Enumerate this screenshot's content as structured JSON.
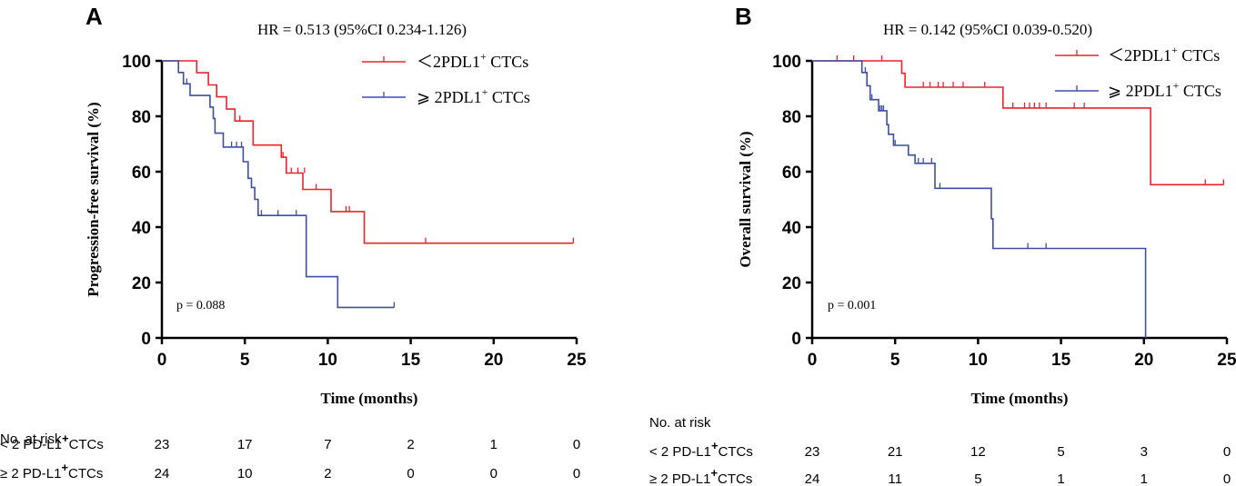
{
  "chart_data": [
    {
      "type": "line",
      "panel_label": "A",
      "title": "HR = 0.513 (95%CI 0.234-1.126)",
      "xlabel": "Time (months)",
      "ylabel": "Progression-free survival (%)",
      "xlim": [
        0,
        25
      ],
      "ylim": [
        0,
        100
      ],
      "xticks": [
        "0",
        "5",
        "10",
        "15",
        "20",
        "25"
      ],
      "yticks": [
        "0",
        "20",
        "40",
        "60",
        "80",
        "100"
      ],
      "legend_position": "top-right",
      "annotation": "p = 0.088",
      "series": [
        {
          "name": "＜2PDL1",
          "sup": "+",
          "suffix": " CTCs",
          "color": "#e8242a",
          "points": [
            [
              0,
              100
            ],
            [
              2.1,
              100
            ],
            [
              2.1,
              95.7
            ],
            [
              2.8,
              95.7
            ],
            [
              2.8,
              91.3
            ],
            [
              3.3,
              91.3
            ],
            [
              3.3,
              87
            ],
            [
              3.9,
              87
            ],
            [
              3.9,
              82.6
            ],
            [
              4.4,
              82.6
            ],
            [
              4.4,
              78.3
            ],
            [
              5.5,
              78.3
            ],
            [
              5.5,
              69.6
            ],
            [
              7.2,
              69.6
            ],
            [
              7.2,
              65.2
            ],
            [
              7.5,
              65.2
            ],
            [
              7.5,
              59.5
            ],
            [
              8.5,
              59.5
            ],
            [
              8.5,
              53.6
            ],
            [
              10.2,
              53.6
            ],
            [
              10.2,
              45.6
            ],
            [
              12.2,
              45.6
            ],
            [
              12.2,
              34.2
            ],
            [
              24.8,
              34.2
            ]
          ],
          "censors": [
            [
              4.7,
              78.3
            ],
            [
              7.3,
              65.2
            ],
            [
              7.8,
              59.5
            ],
            [
              8.2,
              59.5
            ],
            [
              8.6,
              59.5
            ],
            [
              9.3,
              53.6
            ],
            [
              11.1,
              45.6
            ],
            [
              11.3,
              45.6
            ],
            [
              15.9,
              34.2
            ],
            [
              24.8,
              34.2
            ]
          ]
        },
        {
          "name": "⩾ 2PDL1",
          "sup": "+",
          "suffix": " CTCs",
          "color": "#3e4fa3",
          "points": [
            [
              0,
              100
            ],
            [
              1,
              100
            ],
            [
              1,
              95.8
            ],
            [
              1.3,
              95.8
            ],
            [
              1.3,
              91.7
            ],
            [
              1.7,
              91.7
            ],
            [
              1.7,
              87.5
            ],
            [
              2.9,
              87.5
            ],
            [
              2.9,
              83.3
            ],
            [
              3.1,
              83.3
            ],
            [
              3.1,
              79.2
            ],
            [
              3.2,
              79.2
            ],
            [
              3.2,
              73.9
            ],
            [
              3.7,
              73.9
            ],
            [
              3.7,
              68.9
            ],
            [
              4.9,
              68.9
            ],
            [
              4.9,
              63.6
            ],
            [
              5.2,
              63.6
            ],
            [
              5.2,
              57.6
            ],
            [
              5.4,
              57.6
            ],
            [
              5.4,
              54.3
            ],
            [
              5.6,
              54.3
            ],
            [
              5.6,
              50
            ],
            [
              5.8,
              50
            ],
            [
              5.8,
              44.2
            ],
            [
              8.7,
              44.2
            ],
            [
              8.7,
              22.1
            ],
            [
              10.6,
              22.1
            ],
            [
              10.6,
              11
            ],
            [
              14.0,
              11
            ]
          ],
          "censors": [
            [
              1.5,
              91.7
            ],
            [
              4.2,
              68.9
            ],
            [
              4.5,
              68.9
            ],
            [
              4.8,
              68.9
            ],
            [
              6.0,
              44.2
            ],
            [
              7.0,
              44.2
            ],
            [
              8.1,
              44.2
            ],
            [
              14.0,
              11
            ]
          ]
        }
      ],
      "risk_table": {
        "header": "No. at risk",
        "times": [
          "0",
          "5",
          "10",
          "15",
          "20",
          "25"
        ],
        "rows": [
          {
            "prefix": "< 2 PD-L1",
            "sup": "+",
            "suffix": "CTCs",
            "values": [
              "23",
              "17",
              "7",
              "2",
              "1",
              "0"
            ]
          },
          {
            "prefix": "≥ 2 PD-L1",
            "sup": "+",
            "suffix": "CTCs",
            "values": [
              "24",
              "10",
              "2",
              "0",
              "0",
              "0"
            ]
          }
        ]
      }
    },
    {
      "type": "line",
      "panel_label": "B",
      "title": "HR = 0.142 (95%CI 0.039-0.520)",
      "xlabel": "Time (months)",
      "ylabel": "Overall survival (%)",
      "xlim": [
        0,
        25
      ],
      "ylim": [
        0,
        100
      ],
      "xticks": [
        "0",
        "5",
        "10",
        "15",
        "20",
        "25"
      ],
      "yticks": [
        "0",
        "20",
        "40",
        "60",
        "80",
        "100"
      ],
      "legend_position": "top-right",
      "annotation": "p = 0.001",
      "series": [
        {
          "name": "＜2PDL1",
          "sup": "+",
          "suffix": " CTCs",
          "color": "#e8242a",
          "points": [
            [
              0,
              100
            ],
            [
              5.4,
              100
            ],
            [
              5.4,
              95.5
            ],
            [
              5.6,
              95.5
            ],
            [
              5.6,
              90.5
            ],
            [
              11.5,
              90.5
            ],
            [
              11.5,
              83
            ],
            [
              20.4,
              83
            ],
            [
              20.4,
              55.3
            ],
            [
              24.8,
              55.3
            ]
          ],
          "censors": [
            [
              1.5,
              100
            ],
            [
              2.5,
              100
            ],
            [
              4.2,
              100
            ],
            [
              6.7,
              90.5
            ],
            [
              7.1,
              90.5
            ],
            [
              7.6,
              90.5
            ],
            [
              7.9,
              90.5
            ],
            [
              8.5,
              90.5
            ],
            [
              9.1,
              90.5
            ],
            [
              10.4,
              90.5
            ],
            [
              12.1,
              83
            ],
            [
              12.8,
              83
            ],
            [
              13.1,
              83
            ],
            [
              13.4,
              83
            ],
            [
              13.7,
              83
            ],
            [
              14.1,
              83
            ],
            [
              15.8,
              83
            ],
            [
              16.4,
              83
            ],
            [
              23.7,
              55.3
            ],
            [
              24.8,
              55.3
            ]
          ]
        },
        {
          "name": "⩾ 2PDL1",
          "sup": "+",
          "suffix": " CTCs",
          "color": "#3e4fa3",
          "points": [
            [
              0,
              100
            ],
            [
              3,
              100
            ],
            [
              3,
              95.8
            ],
            [
              3.3,
              95.8
            ],
            [
              3.3,
              91
            ],
            [
              3.5,
              91
            ],
            [
              3.5,
              86
            ],
            [
              4.0,
              86
            ],
            [
              4.0,
              82
            ],
            [
              4.5,
              82
            ],
            [
              4.5,
              77
            ],
            [
              4.6,
              77
            ],
            [
              4.6,
              73.5
            ],
            [
              4.9,
              73.5
            ],
            [
              4.9,
              69.5
            ],
            [
              5.8,
              69.5
            ],
            [
              5.8,
              66
            ],
            [
              6.2,
              66
            ],
            [
              6.2,
              63
            ],
            [
              7.4,
              63
            ],
            [
              7.4,
              54
            ],
            [
              10.8,
              54
            ],
            [
              10.8,
              43
            ],
            [
              10.9,
              43
            ],
            [
              10.9,
              32.3
            ],
            [
              20.1,
              32.3
            ],
            [
              20.1,
              0
            ]
          ],
          "censors": [
            [
              3.2,
              95.8
            ],
            [
              3.6,
              86
            ],
            [
              4.1,
              82
            ],
            [
              4.2,
              82
            ],
            [
              4.3,
              82
            ],
            [
              5.0,
              69.5
            ],
            [
              6.4,
              63
            ],
            [
              6.7,
              63
            ],
            [
              7.2,
              63
            ],
            [
              7.7,
              54
            ],
            [
              13.0,
              32.3
            ],
            [
              14.1,
              32.3
            ]
          ]
        }
      ],
      "risk_table": {
        "header": "No. at risk",
        "times": [
          "0",
          "5",
          "10",
          "15",
          "20",
          "25"
        ],
        "rows": [
          {
            "prefix": "< 2 PD-L1",
            "sup": "+",
            "suffix": "CTCs",
            "values": [
              "23",
              "21",
              "12",
              "5",
              "3",
              "0"
            ]
          },
          {
            "prefix": "≥ 2 PD-L1",
            "sup": "+",
            "suffix": "CTCs",
            "values": [
              "24",
              "11",
              "5",
              "1",
              "1",
              "0"
            ]
          }
        ]
      }
    }
  ]
}
